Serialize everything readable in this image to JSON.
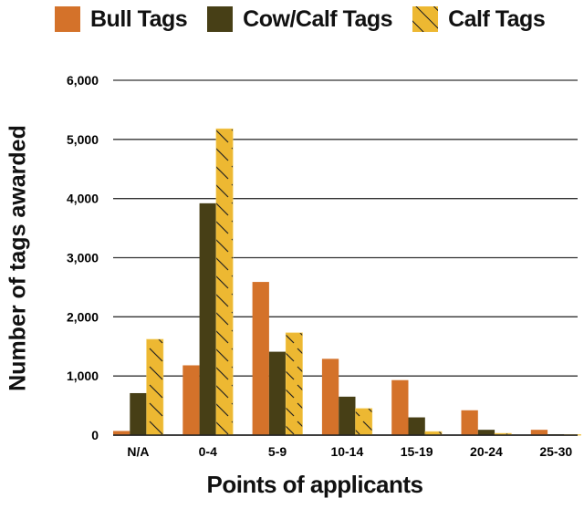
{
  "chart_data": {
    "type": "bar",
    "title": "",
    "xlabel": "Points of applicants",
    "ylabel": "Number of tags awarded",
    "categories": [
      "N/A",
      "0-4",
      "5-9",
      "10-14",
      "15-19",
      "20-24",
      "25-30"
    ],
    "series": [
      {
        "name": "Bull Tags",
        "color": "#D4722A",
        "pattern": "solid",
        "values": [
          70,
          1180,
          2590,
          1290,
          930,
          420,
          90
        ]
      },
      {
        "name": "Cow/Calf Tags",
        "color": "#473F16",
        "pattern": "solid",
        "values": [
          710,
          3920,
          1410,
          650,
          300,
          90,
          15
        ]
      },
      {
        "name": "Calf Tags",
        "color": "#EDB832",
        "pattern": "diagonal-hatch",
        "values": [
          1620,
          5180,
          1730,
          450,
          60,
          30,
          10
        ]
      }
    ],
    "ylim": [
      0,
      6000
    ],
    "yticks": [
      0,
      1000,
      2000,
      3000,
      4000,
      5000,
      6000
    ],
    "ytick_labels": [
      "0",
      "1,000",
      "2,000",
      "3,000",
      "4,000",
      "5,000",
      "6,000"
    ],
    "grid": true,
    "legend_position": "top"
  },
  "legend": {
    "items": [
      {
        "label": "Bull Tags",
        "color": "#D4722A"
      },
      {
        "label": "Cow/Calf Tags",
        "color": "#473F16"
      },
      {
        "label": "Calf Tags",
        "color": "#EDB832"
      }
    ]
  },
  "axes": {
    "xlabel": "Points of applicants",
    "ylabel": "Number of tags awarded"
  }
}
